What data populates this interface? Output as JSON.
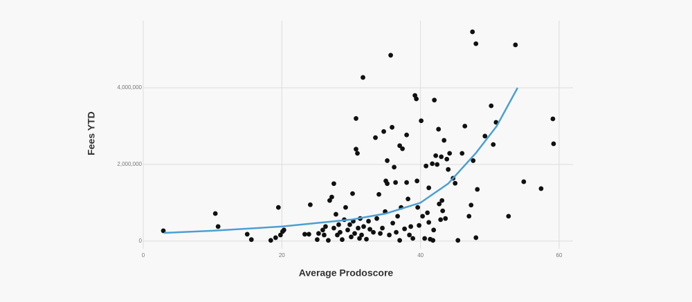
{
  "chart_data": {
    "type": "scatter",
    "x_label": "Average Prodoscore",
    "y_label": "Fees YTD",
    "color": "#111111",
    "x": [
      2.9,
      10.4,
      10.8,
      15,
      15.6,
      18.4,
      19.1,
      19.5,
      19.8,
      20.1,
      20.3,
      23.3,
      24.1,
      23.9,
      25.1,
      25.3,
      25.9,
      26.1,
      26.3,
      26.7,
      26.9,
      27.2,
      27.5,
      27.5,
      27.8,
      28,
      28.2,
      28.4,
      28.7,
      29,
      29.2,
      29.5,
      29.8,
      30,
      30.2,
      30.3,
      30.5,
      30.7,
      30.7,
      30.9,
      31,
      31.2,
      31.3,
      31.5,
      31.7,
      31.8,
      32.2,
      32.5,
      32.7,
      33.2,
      33.5,
      33.7,
      34,
      34.2,
      34.5,
      34.7,
      34.9,
      35,
      35.2,
      35.2,
      35.5,
      35.7,
      35.9,
      36,
      36.2,
      36.4,
      36.5,
      36.7,
      37,
      37,
      37.2,
      37.4,
      37.7,
      38,
      38,
      38.2,
      38.4,
      38.6,
      38.9,
      39.2,
      39.4,
      39.5,
      39.6,
      39.8,
      40.1,
      40.3,
      40.6,
      40.8,
      41,
      41.2,
      41.2,
      41.4,
      41.7,
      41.8,
      41.9,
      42,
      42.2,
      42.4,
      42.6,
      42.7,
      42.9,
      43,
      43.1,
      43.2,
      43.4,
      43.6,
      43.8,
      44,
      44.2,
      44.7,
      45,
      45.4,
      46,
      46.4,
      47,
      47.3,
      47.5,
      47.6,
      48,
      48,
      48.2,
      49.3,
      50.2,
      50.5,
      50.9,
      52.7,
      53.7,
      54.9,
      57.4,
      59.1,
      59.2
    ],
    "values": [
      270000,
      720000,
      380000,
      180000,
      40000,
      20000,
      90000,
      880000,
      160000,
      250000,
      290000,
      180000,
      950000,
      180000,
      40000,
      200000,
      290000,
      160000,
      380000,
      20000,
      1060000,
      1150000,
      1500000,
      340000,
      700000,
      160000,
      430000,
      230000,
      40000,
      560000,
      880000,
      290000,
      430000,
      110000,
      1240000,
      520000,
      200000,
      3200000,
      2400000,
      2290000,
      340000,
      70000,
      590000,
      160000,
      4270000,
      380000,
      50000,
      520000,
      310000,
      230000,
      2700000,
      590000,
      1220000,
      200000,
      340000,
      2860000,
      770000,
      1570000,
      2100000,
      1500000,
      160000,
      4850000,
      2970000,
      470000,
      1930000,
      1530000,
      230000,
      650000,
      2490000,
      20000,
      880000,
      2410000,
      320000,
      2770000,
      1530000,
      1100000,
      160000,
      380000,
      70000,
      3800000,
      3710000,
      1570000,
      880000,
      410000,
      3140000,
      650000,
      70000,
      1960000,
      740000,
      1390000,
      490000,
      50000,
      2020000,
      20000,
      290000,
      3680000,
      2230000,
      2000000,
      2920000,
      970000,
      560000,
      2200000,
      1060000,
      790000,
      2630000,
      590000,
      2140000,
      1870000,
      2290000,
      1640000,
      1510000,
      20000,
      2290000,
      3000000,
      650000,
      940000,
      5460000,
      2100000,
      5150000,
      90000,
      1350000,
      2740000,
      3530000,
      2520000,
      3100000,
      650000,
      5120000,
      1550000,
      1370000,
      3190000,
      2540000
    ],
    "trend": {
      "color": "#4a9fd4",
      "x": [
        3,
        10,
        20,
        30,
        35,
        40,
        44,
        48,
        51,
        54
      ],
      "values": [
        215000,
        270000,
        380000,
        560000,
        720000,
        1000000,
        1500000,
        2300000,
        3000000,
        4000000
      ]
    },
    "xlim": [
      0,
      62
    ],
    "ylim": [
      -200000,
      5750000
    ],
    "xticks": [
      0,
      20,
      40,
      60
    ],
    "yticks": [
      0,
      {
        "value": 2000000,
        "label": "2,000,000"
      },
      {
        "value": 4000000,
        "label": "4,000,000"
      }
    ],
    "grid": true
  }
}
